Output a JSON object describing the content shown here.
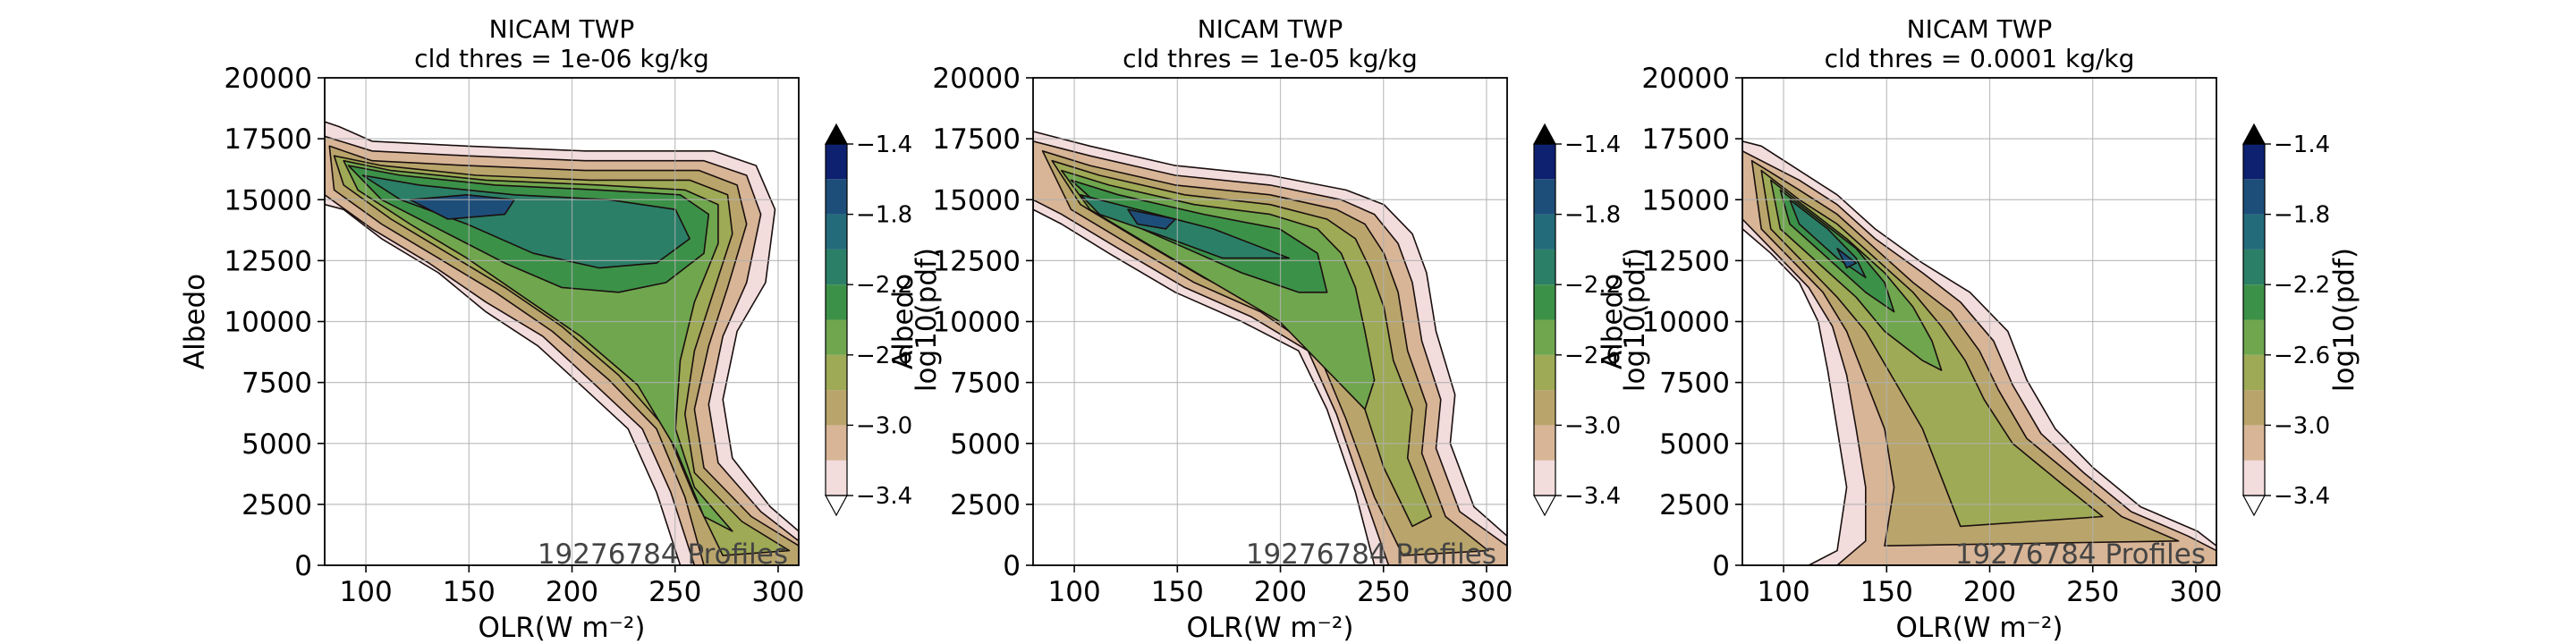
{
  "colorbar_levels": [
    -3.4,
    -3.2,
    -3.0,
    -2.8,
    -2.6,
    -2.4,
    -2.2,
    -2.0,
    -1.8,
    -1.6,
    -1.4
  ],
  "colorbar_tick_labels": [
    "−3.4",
    "−3.0",
    "−2.6",
    "−2.2",
    "−1.8",
    "−1.4"
  ],
  "colorbar_colors": [
    "#f2dcdc",
    "#d7b596",
    "#b9a56b",
    "#9eaa55",
    "#6fa64e",
    "#3c9148",
    "#2b7f66",
    "#236b7a",
    "#1d4e7a",
    "#0e2070"
  ],
  "contour_line_color": "#1a0f0f",
  "chart_data": [
    {
      "type": "contour",
      "title": "NICAM TWP",
      "subtitle": "cld thres = 1e-06 kg/kg",
      "xlabel": "OLR(W m⁻²)",
      "ylabel": "Albedo",
      "colorbar_label": "log10(pdf)",
      "annotation": "19276784 Profiles",
      "xlim": [
        80,
        310
      ],
      "ylim": [
        0,
        20000
      ],
      "x_ticks": [
        100,
        150,
        200,
        250,
        300
      ],
      "y_ticks": [
        0,
        2500,
        5000,
        7500,
        10000,
        12500,
        15000,
        17500,
        20000
      ],
      "grid": true,
      "colorbar_range": [
        -3.4,
        -1.4
      ],
      "peak": {
        "x": 145,
        "y": 14500,
        "value": -1.8
      }
    },
    {
      "type": "contour",
      "title": "NICAM TWP",
      "subtitle": "cld thres = 1e-05 kg/kg",
      "xlabel": "OLR(W m⁻²)",
      "ylabel": "Albedo",
      "colorbar_label": "log10(pdf)",
      "annotation": "19276784 Profiles",
      "xlim": [
        80,
        310
      ],
      "ylim": [
        0,
        20000
      ],
      "x_ticks": [
        100,
        150,
        200,
        250,
        300
      ],
      "y_ticks": [
        0,
        2500,
        5000,
        7500,
        10000,
        12500,
        15000,
        17500,
        20000
      ],
      "grid": true,
      "colorbar_range": [
        -3.4,
        -1.4
      ],
      "peak": {
        "x": 125,
        "y": 14500,
        "value": -1.6
      }
    },
    {
      "type": "contour",
      "title": "NICAM TWP",
      "subtitle": "cld thres = 0.0001 kg/kg",
      "xlabel": "OLR(W m⁻²)",
      "ylabel": "Albedo",
      "colorbar_label": "log10(pdf)",
      "annotation": "19276784 Profiles",
      "xlim": [
        80,
        310
      ],
      "ylim": [
        0,
        20000
      ],
      "x_ticks": [
        100,
        150,
        200,
        250,
        300
      ],
      "y_ticks": [
        0,
        2500,
        5000,
        7500,
        10000,
        12500,
        15000,
        17500,
        20000
      ],
      "grid": true,
      "colorbar_range": [
        -3.4,
        -1.4
      ],
      "peak": {
        "x": 130,
        "y": 14000,
        "value": -1.6
      }
    }
  ]
}
